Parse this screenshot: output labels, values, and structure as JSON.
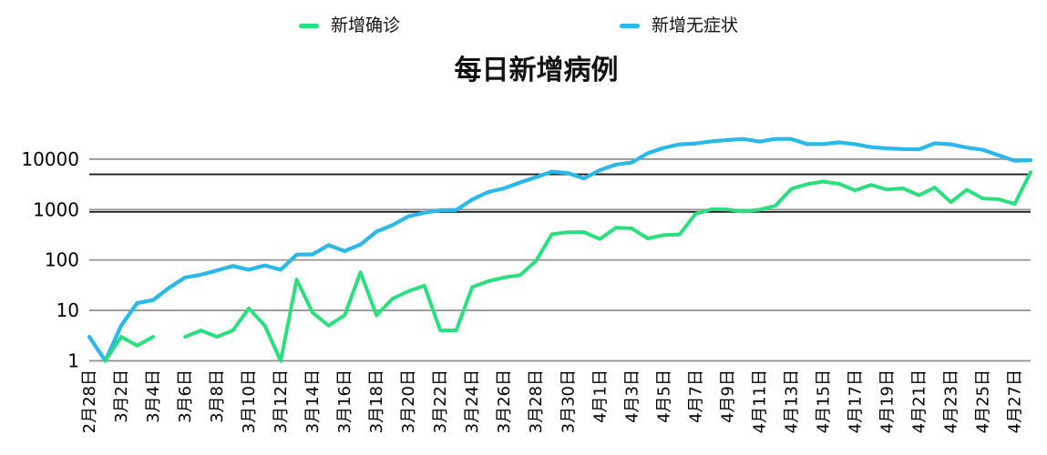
{
  "title": "每日新增病例",
  "legend": {
    "confirmed": "新增确诊",
    "asymptomatic": "新增无症状"
  },
  "colors": {
    "confirmed": "#2bdf7f",
    "asymptomatic": "#29b8e9",
    "grid": "#8f8f8f",
    "annotation": "#1c1c1c",
    "text": "#000000",
    "background": "#ffffff"
  },
  "chart_data": {
    "type": "line",
    "title": "每日新增病例",
    "xlabel": "",
    "ylabel": "",
    "y_scale": "log",
    "grid": true,
    "legend_position": "top",
    "y_ticks": [
      1,
      10,
      100,
      1000,
      10000
    ],
    "ylim": [
      1,
      30000
    ],
    "annotation_hlines": [
      5000,
      900
    ],
    "x_tick_labels": [
      "2月28日",
      "3月2日",
      "3月4日",
      "3月6日",
      "3月8日",
      "3月10日",
      "3月12日",
      "3月14日",
      "3月16日",
      "3月18日",
      "3月20日",
      "3月22日",
      "3月24日",
      "3月26日",
      "3月28日",
      "3月30日",
      "4月1日",
      "4月3日",
      "4月5日",
      "4月7日",
      "4月9日",
      "4月11日",
      "4月13日",
      "4月15日",
      "4月17日",
      "4月19日",
      "4月21日",
      "4月23日",
      "4月25日",
      "4月27日"
    ],
    "categories": [
      "2月28日",
      "3月1日",
      "3月2日",
      "3月3日",
      "3月4日",
      "3月5日",
      "3月6日",
      "3月7日",
      "3月8日",
      "3月9日",
      "3月10日",
      "3月11日",
      "3月12日",
      "3月13日",
      "3月14日",
      "3月15日",
      "3月16日",
      "3月17日",
      "3月18日",
      "3月19日",
      "3月20日",
      "3月21日",
      "3月22日",
      "3月23日",
      "3月24日",
      "3月25日",
      "3月26日",
      "3月27日",
      "3月28日",
      "3月29日",
      "3月30日",
      "3月31日",
      "4月1日",
      "4月2日",
      "4月3日",
      "4月4日",
      "4月5日",
      "4月6日",
      "4月7日",
      "4月8日",
      "4月9日",
      "4月10日",
      "4月11日",
      "4月12日",
      "4月13日",
      "4月14日",
      "4月15日",
      "4月16日",
      "4月17日",
      "4月18日",
      "4月19日",
      "4月20日",
      "4月21日",
      "4月22日",
      "4月23日",
      "4月24日",
      "4月25日",
      "4月26日",
      "4月27日",
      "4月28日"
    ],
    "series": [
      {
        "name": "新增确诊",
        "color": "#2bdf7f",
        "values": [
          null,
          1,
          3,
          2,
          3,
          null,
          3,
          4,
          3,
          4,
          11,
          5,
          1,
          41,
          9,
          5,
          8,
          57,
          8,
          17,
          24,
          31,
          4,
          4,
          29,
          38,
          45,
          50,
          96,
          326,
          355,
          358,
          260,
          438,
          425,
          268,
          311,
          322,
          824,
          1015,
          1006,
          914,
          994,
          1189,
          2573,
          3200,
          3590,
          3238,
          2417,
          3084,
          2494,
          2634,
          1931,
          2736,
          1401,
          2472,
          1661,
          1606,
          1292,
          5487
        ]
      },
      {
        "name": "新增无症状",
        "color": "#29b8e9",
        "values": [
          3,
          1,
          5,
          14,
          16,
          28,
          45,
          51,
          62,
          76,
          64,
          78,
          64,
          128,
          130,
          197,
          150,
          203,
          366,
          492,
          734,
          865,
          977,
          979,
          1580,
          2231,
          2631,
          3450,
          4381,
          5656,
          5298,
          4144,
          6051,
          7788,
          8581,
          13086,
          16766,
          19660,
          20398,
          22609,
          23937,
          25173,
          22348,
          25141,
          25146,
          19872,
          19923,
          21582,
          19831,
          17332,
          16407,
          15861,
          15698,
          20634,
          19657,
          16983,
          15319,
          11956,
          9330,
          9545
        ]
      }
    ]
  }
}
